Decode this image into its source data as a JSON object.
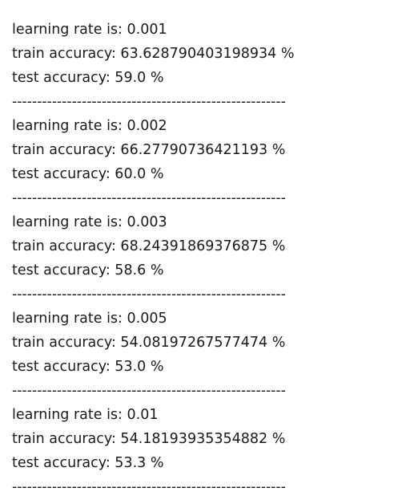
{
  "runs": [
    {
      "lr_line": "learning rate is: 0.001",
      "train_line": "train accuracy: 63.628790403198934 %",
      "test_line": "test accuracy: 59.0 %",
      "separator": "-------------------------------------------------------"
    },
    {
      "lr_line": "learning rate is: 0.002",
      "train_line": "train accuracy: 66.27790736421193 %",
      "test_line": "test accuracy: 60.0 %",
      "separator": "-------------------------------------------------------"
    },
    {
      "lr_line": "learning rate is: 0.003",
      "train_line": "train accuracy: 68.24391869376875 %",
      "test_line": "test accuracy: 58.6 %",
      "separator": "-------------------------------------------------------"
    },
    {
      "lr_line": "learning rate is: 0.005",
      "train_line": "train accuracy: 54.08197267577474 %",
      "test_line": "test accuracy: 53.0 %",
      "separator": "-------------------------------------------------------"
    },
    {
      "lr_line": "learning rate is: 0.01",
      "train_line": "train accuracy: 54.18193935354882 %",
      "test_line": "test accuracy: 53.3 %",
      "separator": "-------------------------------------------------------"
    }
  ]
}
